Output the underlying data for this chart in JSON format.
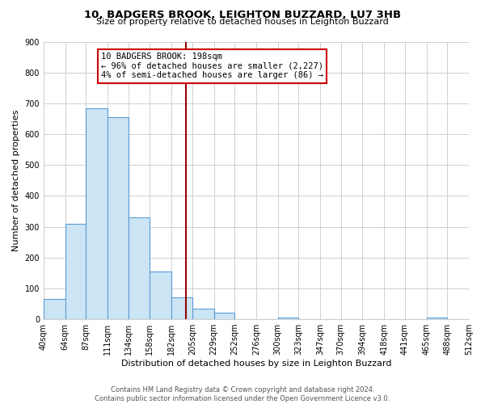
{
  "title": "10, BADGERS BROOK, LEIGHTON BUZZARD, LU7 3HB",
  "subtitle": "Size of property relative to detached houses in Leighton Buzzard",
  "xlabel": "Distribution of detached houses by size in Leighton Buzzard",
  "ylabel": "Number of detached properties",
  "bar_edges": [
    40,
    64,
    87,
    111,
    134,
    158,
    182,
    205,
    229,
    252,
    276,
    300,
    323,
    347,
    370,
    394,
    418,
    441,
    465,
    488,
    512
  ],
  "bar_heights": [
    65,
    310,
    685,
    655,
    330,
    155,
    70,
    35,
    20,
    0,
    0,
    5,
    0,
    0,
    0,
    0,
    0,
    0,
    5,
    0,
    0
  ],
  "bar_color": "#cce5f5",
  "bar_edgecolor": "#5b9bd5",
  "vline_x": 198,
  "vline_color": "#990000",
  "annotation_text": "10 BADGERS BROOK: 198sqm\n← 96% of detached houses are smaller (2,227)\n4% of semi-detached houses are larger (86) →",
  "annotation_box_edgecolor": "#cc0000",
  "annotation_box_facecolor": "#ffffff",
  "ylim": [
    0,
    900
  ],
  "yticks": [
    0,
    100,
    200,
    300,
    400,
    500,
    600,
    700,
    800,
    900
  ],
  "footer_line1": "Contains HM Land Registry data © Crown copyright and database right 2024.",
  "footer_line2": "Contains public sector information licensed under the Open Government Licence v3.0.",
  "background_color": "#ffffff",
  "grid_color": "#d0d0d0",
  "title_fontsize": 9.5,
  "subtitle_fontsize": 8,
  "axis_label_fontsize": 8,
  "tick_fontsize": 7,
  "footer_fontsize": 6,
  "annotation_fontsize": 7.5
}
